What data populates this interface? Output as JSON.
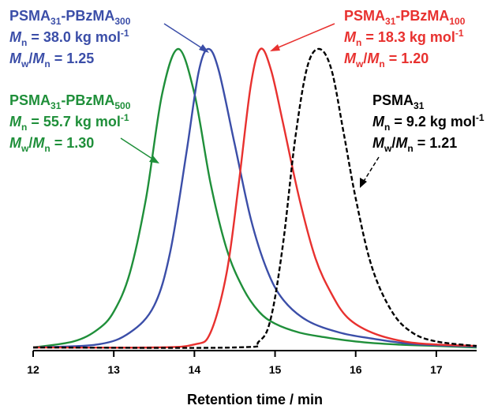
{
  "chart_data": {
    "type": "line",
    "xlabel": "Retention time / min",
    "ylabel": "",
    "xlim": [
      12,
      17.5
    ],
    "ylim": [
      0,
      1
    ],
    "x_ticks": [
      "12",
      "13",
      "14",
      "15",
      "16",
      "17"
    ],
    "grid": false,
    "series": [
      {
        "name": "PSMA31-PBzMA500",
        "color": "#1f8f3a",
        "dash": "solid",
        "x": [
          12.0,
          12.5,
          12.8,
          13.0,
          13.2,
          13.4,
          13.6,
          13.8,
          14.0,
          14.2,
          14.4,
          14.6,
          14.8,
          15.0,
          15.3,
          15.6,
          16.0,
          16.5,
          17.0,
          17.5
        ],
        "y": [
          0.0,
          0.02,
          0.06,
          0.12,
          0.25,
          0.5,
          0.85,
          1.0,
          0.85,
          0.55,
          0.33,
          0.2,
          0.12,
          0.08,
          0.05,
          0.035,
          0.02,
          0.01,
          0.005,
          0.0
        ]
      },
      {
        "name": "PSMA31-PBzMA300",
        "color": "#3b4ea8",
        "dash": "solid",
        "x": [
          12.0,
          12.8,
          13.2,
          13.5,
          13.7,
          13.9,
          14.05,
          14.17,
          14.3,
          14.5,
          14.7,
          14.9,
          15.1,
          15.4,
          15.8,
          16.2,
          16.7,
          17.5
        ],
        "y": [
          0.0,
          0.01,
          0.05,
          0.14,
          0.32,
          0.65,
          0.92,
          1.0,
          0.93,
          0.68,
          0.43,
          0.26,
          0.16,
          0.09,
          0.05,
          0.03,
          0.012,
          0.003
        ]
      },
      {
        "name": "PSMA31-PBzMA100",
        "color": "#e8312f",
        "dash": "solid",
        "x": [
          12.0,
          13.5,
          14.0,
          14.2,
          14.4,
          14.55,
          14.7,
          14.82,
          14.95,
          15.1,
          15.3,
          15.5,
          15.7,
          15.9,
          16.2,
          16.6,
          17.0,
          17.5
        ],
        "y": [
          0.0,
          0.0,
          0.01,
          0.05,
          0.25,
          0.55,
          0.88,
          1.0,
          0.93,
          0.75,
          0.5,
          0.3,
          0.18,
          0.1,
          0.05,
          0.02,
          0.01,
          0.005
        ]
      },
      {
        "name": "PSMA31",
        "color": "#000000",
        "dash": "dashed",
        "x": [
          12.0,
          14.5,
          14.8,
          14.95,
          15.1,
          15.25,
          15.4,
          15.55,
          15.7,
          15.85,
          16.0,
          16.2,
          16.45,
          16.7,
          17.0,
          17.5
        ],
        "y": [
          0.0,
          0.0,
          0.02,
          0.1,
          0.35,
          0.7,
          0.94,
          1.0,
          0.93,
          0.72,
          0.5,
          0.27,
          0.12,
          0.05,
          0.02,
          0.005
        ]
      }
    ],
    "annotations": [
      {
        "label": "PSMA31-PBzMA300",
        "mn": "38.0 kg mol-1",
        "mwmn": "1.25",
        "color": "#3b4ea8"
      },
      {
        "label": "PSMA31-PBzMA100",
        "mn": "18.3 kg mol-1",
        "mwmn": "1.20",
        "color": "#e8312f"
      },
      {
        "label": "PSMA31-PBzMA500",
        "mn": "55.7 kg mol-1",
        "mwmn": "1.30",
        "color": "#1f8f3a"
      },
      {
        "label": "PSMA31",
        "mn": "9.2 kg mol-1",
        "mwmn": "1.21",
        "color": "#000000"
      }
    ]
  }
}
